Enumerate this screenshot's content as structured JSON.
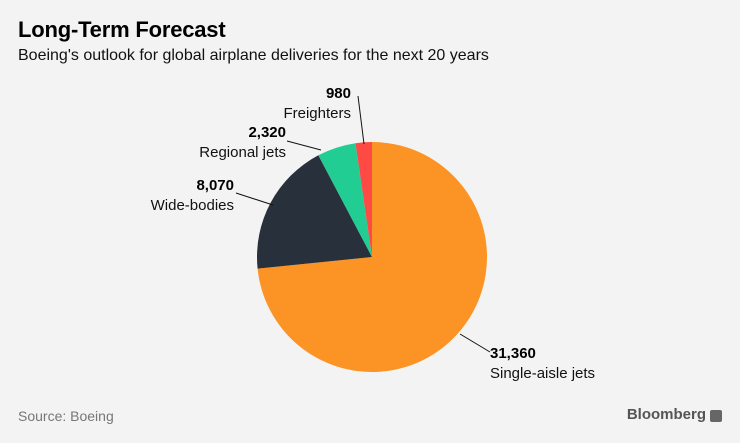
{
  "title": "Long-Term Forecast",
  "subtitle": "Boeing's outlook for global airplane deliveries for the next 20 years",
  "source": "Source: Boeing",
  "brand": "Bloomberg",
  "chart_data": {
    "type": "pie",
    "title": "Long-Term Forecast",
    "slices": [
      {
        "label": "Single-aisle jets",
        "value": 31360,
        "value_text": "31,360",
        "color": "#fb9325"
      },
      {
        "label": "Wide-bodies",
        "value": 8070,
        "value_text": "8,070",
        "color": "#28303c"
      },
      {
        "label": "Regional jets",
        "value": 2320,
        "value_text": "2,320",
        "color": "#21cd93"
      },
      {
        "label": "Freighters",
        "value": 980,
        "value_text": "980",
        "color": "#fe4a45"
      }
    ]
  }
}
